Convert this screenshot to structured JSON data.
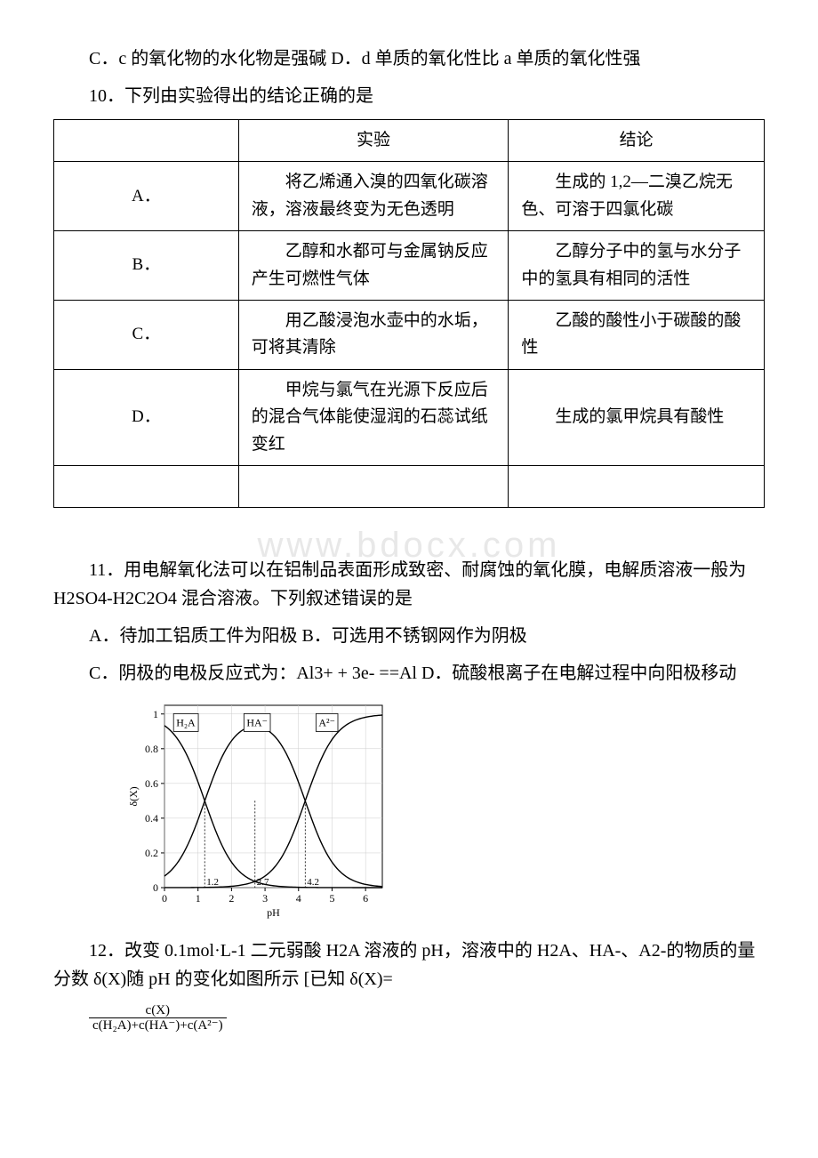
{
  "line_cd": "C．c 的氧化物的水化物是强碱 D．d 单质的氧化性比 a 单质的氧化性强",
  "q10_stem": "10．下列由实验得出的结论正确的是",
  "table": {
    "header": {
      "exp": "实验",
      "con": "结论"
    },
    "rows": [
      {
        "label": "A．",
        "exp": "将乙烯通入溴的四氧化碳溶液，溶液最终变为无色透明",
        "con": "生成的 1,2—二溴乙烷无色、可溶于四氯化碳"
      },
      {
        "label": "B．",
        "exp": "乙醇和水都可与金属钠反应产生可燃性气体",
        "con": "乙醇分子中的氢与水分子中的氢具有相同的活性"
      },
      {
        "label": "C．",
        "exp": "用乙酸浸泡水壶中的水垢，可将其清除",
        "con": "乙酸的酸性小于碳酸的酸性"
      },
      {
        "label": "D．",
        "exp": "甲烷与氯气在光源下反应后的混合气体能使湿润的石蕊试纸变红",
        "con": "生成的氯甲烷具有酸性"
      }
    ]
  },
  "watermark": "www.bdocx.com",
  "q11_stem": "11．用电解氧化法可以在铝制品表面形成致密、耐腐蚀的氧化膜，电解质溶液一般为 H2SO4-H2C2O4 混合溶液。下列叙述错误的是",
  "q11_ab": "A．待加工铝质工件为阳极 B．可选用不锈钢网作为阴极",
  "q11_cd": "C．阴极的电极反应式为：Al3+ + 3e- ==Al D．硫酸根离子在电解过程中向阳极移动",
  "q12_stem": "12．改变 0.1mol·L-1 二元弱酸 H2A 溶液的 pH，溶液中的 H2A、HA-、A2-的物质的量分数 δ(X)随 pH 的变化如图所示 [已知 δ(X)=",
  "frac": {
    "num": "c(X)",
    "den": "c(H₂A)+c(HA⁻)+c(A²⁻)"
  },
  "chart": {
    "type": "line",
    "x_label": "pH",
    "y_label": "δ(X)",
    "xlim": [
      0,
      6.5
    ],
    "ylim": [
      0,
      1.05
    ],
    "xticks": [
      0,
      1,
      2,
      3,
      4,
      5,
      6
    ],
    "yticks": [
      0,
      0.2,
      0.4,
      0.6,
      0.8,
      1
    ],
    "marks": [
      {
        "x": 1.2,
        "label": "1.2"
      },
      {
        "x": 2.7,
        "label": "2.7"
      },
      {
        "x": 4.2,
        "label": "4.2"
      }
    ],
    "series_labels": {
      "h2a": "H₂A",
      "ha": "HA⁻",
      "a2": "A²⁻"
    },
    "line_color": "#000000",
    "axis_color": "#000000",
    "grid_color": "#cccccc",
    "font_size": 12,
    "h2a_pka": 1.2,
    "ha_center": 2.7,
    "a2_pka": 4.2,
    "slope": 2.2
  }
}
